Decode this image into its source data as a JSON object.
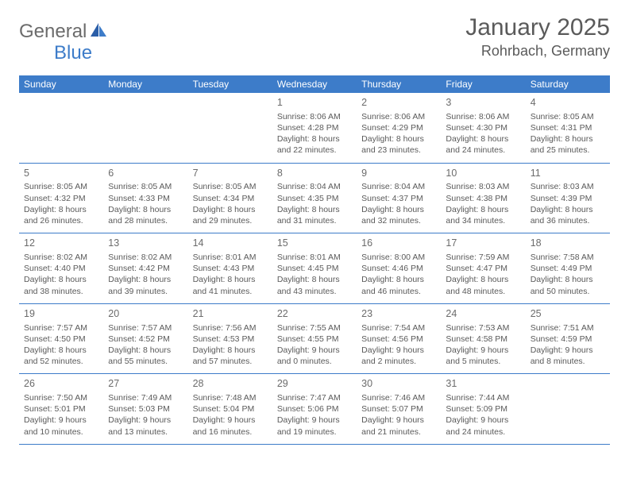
{
  "brand": {
    "part1": "General",
    "part2": "Blue"
  },
  "title": "January 2025",
  "location": "Rohrbach, Germany",
  "colors": {
    "accent": "#3d7cc9",
    "text_gray": "#5a5a5a",
    "logo_gray": "#6b6b6b",
    "white": "#ffffff"
  },
  "dow": [
    "Sunday",
    "Monday",
    "Tuesday",
    "Wednesday",
    "Thursday",
    "Friday",
    "Saturday"
  ],
  "weeks": [
    [
      null,
      null,
      null,
      {
        "n": "1",
        "sr": "8:06 AM",
        "ss": "4:28 PM",
        "dl": "8 hours and 22 minutes."
      },
      {
        "n": "2",
        "sr": "8:06 AM",
        "ss": "4:29 PM",
        "dl": "8 hours and 23 minutes."
      },
      {
        "n": "3",
        "sr": "8:06 AM",
        "ss": "4:30 PM",
        "dl": "8 hours and 24 minutes."
      },
      {
        "n": "4",
        "sr": "8:05 AM",
        "ss": "4:31 PM",
        "dl": "8 hours and 25 minutes."
      }
    ],
    [
      {
        "n": "5",
        "sr": "8:05 AM",
        "ss": "4:32 PM",
        "dl": "8 hours and 26 minutes."
      },
      {
        "n": "6",
        "sr": "8:05 AM",
        "ss": "4:33 PM",
        "dl": "8 hours and 28 minutes."
      },
      {
        "n": "7",
        "sr": "8:05 AM",
        "ss": "4:34 PM",
        "dl": "8 hours and 29 minutes."
      },
      {
        "n": "8",
        "sr": "8:04 AM",
        "ss": "4:35 PM",
        "dl": "8 hours and 31 minutes."
      },
      {
        "n": "9",
        "sr": "8:04 AM",
        "ss": "4:37 PM",
        "dl": "8 hours and 32 minutes."
      },
      {
        "n": "10",
        "sr": "8:03 AM",
        "ss": "4:38 PM",
        "dl": "8 hours and 34 minutes."
      },
      {
        "n": "11",
        "sr": "8:03 AM",
        "ss": "4:39 PM",
        "dl": "8 hours and 36 minutes."
      }
    ],
    [
      {
        "n": "12",
        "sr": "8:02 AM",
        "ss": "4:40 PM",
        "dl": "8 hours and 38 minutes."
      },
      {
        "n": "13",
        "sr": "8:02 AM",
        "ss": "4:42 PM",
        "dl": "8 hours and 39 minutes."
      },
      {
        "n": "14",
        "sr": "8:01 AM",
        "ss": "4:43 PM",
        "dl": "8 hours and 41 minutes."
      },
      {
        "n": "15",
        "sr": "8:01 AM",
        "ss": "4:45 PM",
        "dl": "8 hours and 43 minutes."
      },
      {
        "n": "16",
        "sr": "8:00 AM",
        "ss": "4:46 PM",
        "dl": "8 hours and 46 minutes."
      },
      {
        "n": "17",
        "sr": "7:59 AM",
        "ss": "4:47 PM",
        "dl": "8 hours and 48 minutes."
      },
      {
        "n": "18",
        "sr": "7:58 AM",
        "ss": "4:49 PM",
        "dl": "8 hours and 50 minutes."
      }
    ],
    [
      {
        "n": "19",
        "sr": "7:57 AM",
        "ss": "4:50 PM",
        "dl": "8 hours and 52 minutes."
      },
      {
        "n": "20",
        "sr": "7:57 AM",
        "ss": "4:52 PM",
        "dl": "8 hours and 55 minutes."
      },
      {
        "n": "21",
        "sr": "7:56 AM",
        "ss": "4:53 PM",
        "dl": "8 hours and 57 minutes."
      },
      {
        "n": "22",
        "sr": "7:55 AM",
        "ss": "4:55 PM",
        "dl": "9 hours and 0 minutes."
      },
      {
        "n": "23",
        "sr": "7:54 AM",
        "ss": "4:56 PM",
        "dl": "9 hours and 2 minutes."
      },
      {
        "n": "24",
        "sr": "7:53 AM",
        "ss": "4:58 PM",
        "dl": "9 hours and 5 minutes."
      },
      {
        "n": "25",
        "sr": "7:51 AM",
        "ss": "4:59 PM",
        "dl": "9 hours and 8 minutes."
      }
    ],
    [
      {
        "n": "26",
        "sr": "7:50 AM",
        "ss": "5:01 PM",
        "dl": "9 hours and 10 minutes."
      },
      {
        "n": "27",
        "sr": "7:49 AM",
        "ss": "5:03 PM",
        "dl": "9 hours and 13 minutes."
      },
      {
        "n": "28",
        "sr": "7:48 AM",
        "ss": "5:04 PM",
        "dl": "9 hours and 16 minutes."
      },
      {
        "n": "29",
        "sr": "7:47 AM",
        "ss": "5:06 PM",
        "dl": "9 hours and 19 minutes."
      },
      {
        "n": "30",
        "sr": "7:46 AM",
        "ss": "5:07 PM",
        "dl": "9 hours and 21 minutes."
      },
      {
        "n": "31",
        "sr": "7:44 AM",
        "ss": "5:09 PM",
        "dl": "9 hours and 24 minutes."
      },
      null
    ]
  ],
  "labels": {
    "sunrise": "Sunrise: ",
    "sunset": "Sunset: ",
    "daylight": "Daylight: "
  }
}
